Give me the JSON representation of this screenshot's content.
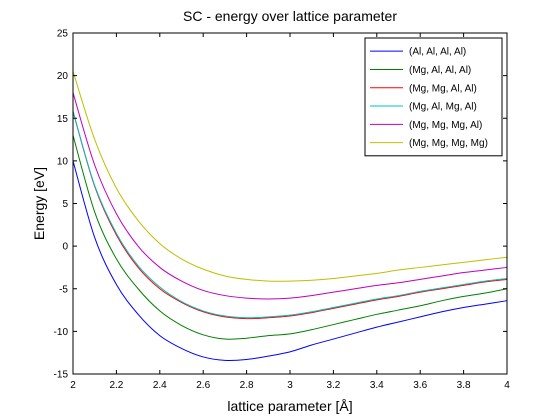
{
  "chart_data": {
    "type": "line",
    "title": "SC - energy over lattice parameter",
    "xlabel": "lattice parameter [Å]",
    "ylabel": "Energy [eV]",
    "xlim": [
      2,
      4
    ],
    "ylim": [
      -15,
      25
    ],
    "xticks": [
      2,
      2.2,
      2.4,
      2.6,
      2.8,
      3,
      3.2,
      3.4,
      3.6,
      3.8,
      4
    ],
    "xtick_labels": [
      "2",
      "2.2",
      "2.4",
      "2.6",
      "2.8",
      "3",
      "3.2",
      "3.4",
      "3.6",
      "3.8",
      "4"
    ],
    "yticks": [
      -15,
      -10,
      -5,
      0,
      5,
      10,
      15,
      20,
      25
    ],
    "ytick_labels": [
      "-15",
      "-10",
      "-5",
      "0",
      "5",
      "10",
      "15",
      "20",
      "25"
    ],
    "grid": false,
    "legend_position": "top-right",
    "x": [
      2.0,
      2.1,
      2.2,
      2.3,
      2.4,
      2.5,
      2.6,
      2.7,
      2.8,
      2.9,
      3.0,
      3.1,
      3.2,
      3.3,
      3.4,
      3.5,
      3.6,
      3.7,
      3.8,
      3.9,
      4.0
    ],
    "series": [
      {
        "name": "(Al, Al, Al, Al)",
        "color": "#0000ff",
        "values": [
          10.0,
          1.0,
          -4.5,
          -8.0,
          -10.5,
          -12.0,
          -13.0,
          -13.4,
          -13.3,
          -12.9,
          -12.4,
          -11.6,
          -10.9,
          -10.2,
          -9.5,
          -8.9,
          -8.3,
          -7.7,
          -7.2,
          -6.8,
          -6.4
        ]
      },
      {
        "name": "(Mg, Al, Al, Al)",
        "color": "#008000",
        "values": [
          13.0,
          4.0,
          -1.5,
          -5.0,
          -7.6,
          -9.3,
          -10.4,
          -10.9,
          -10.8,
          -10.5,
          -10.3,
          -9.8,
          -9.2,
          -8.6,
          -8.0,
          -7.5,
          -7.0,
          -6.4,
          -5.9,
          -5.5,
          -5.0
        ]
      },
      {
        "name": "(Mg, Mg, Al, Al)",
        "color": "#ff0000",
        "values": [
          15.8,
          7.0,
          1.3,
          -2.5,
          -5.0,
          -6.6,
          -7.7,
          -8.3,
          -8.5,
          -8.4,
          -8.2,
          -7.8,
          -7.3,
          -6.8,
          -6.3,
          -5.9,
          -5.4,
          -5.0,
          -4.6,
          -4.2,
          -3.9
        ]
      },
      {
        "name": "(Mg, Al, Mg, Al)",
        "color": "#00bfbf",
        "values": [
          15.8,
          7.1,
          1.5,
          -2.3,
          -4.8,
          -6.5,
          -7.6,
          -8.2,
          -8.4,
          -8.3,
          -8.1,
          -7.7,
          -7.2,
          -6.7,
          -6.2,
          -5.8,
          -5.3,
          -4.9,
          -4.5,
          -4.1,
          -3.8
        ]
      },
      {
        "name": "(Mg, Mg, Mg, Al)",
        "color": "#bf00bf",
        "values": [
          18.0,
          9.5,
          3.8,
          0.0,
          -2.5,
          -4.1,
          -5.2,
          -5.8,
          -6.1,
          -6.2,
          -6.1,
          -5.8,
          -5.4,
          -5.0,
          -4.6,
          -4.3,
          -3.9,
          -3.5,
          -3.1,
          -2.8,
          -2.5
        ]
      },
      {
        "name": "(Mg, Mg, Mg, Mg)",
        "color": "#bfbf00",
        "values": [
          20.5,
          12.5,
          6.8,
          3.0,
          0.3,
          -1.5,
          -2.7,
          -3.5,
          -3.9,
          -4.1,
          -4.1,
          -4.0,
          -3.8,
          -3.5,
          -3.2,
          -2.8,
          -2.5,
          -2.2,
          -1.9,
          -1.6,
          -1.3
        ]
      }
    ]
  }
}
